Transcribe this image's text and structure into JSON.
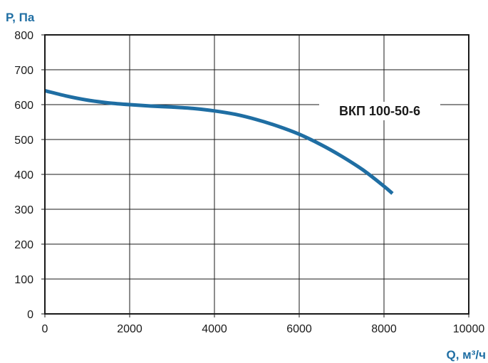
{
  "chart_data": {
    "type": "line",
    "xlabel": "Q, м³/ч",
    "ylabel": "P, Па",
    "xlim": [
      0,
      10000
    ],
    "ylim": [
      0,
      800
    ],
    "x_ticks": [
      "0",
      "2000",
      "4000",
      "6000",
      "8000",
      "10000"
    ],
    "y_ticks": [
      "0",
      "100",
      "200",
      "300",
      "400",
      "500",
      "600",
      "700",
      "800"
    ],
    "grid": true,
    "series": [
      {
        "name": "ВКП 100-50-6",
        "color": "#1f6ea3",
        "x": [
          0,
          500,
          1000,
          1500,
          2000,
          2500,
          3000,
          3500,
          4000,
          4500,
          5000,
          5500,
          6000,
          6500,
          7000,
          7500,
          8000,
          8200
        ],
        "y": [
          640,
          625,
          613,
          605,
          600,
          596,
          593,
          589,
          582,
          572,
          557,
          538,
          515,
          486,
          452,
          413,
          366,
          345
        ]
      }
    ]
  },
  "colors": {
    "axis_title": "#1f6ea3",
    "grid": "#1a1a1a",
    "curve": "#1f6ea3"
  }
}
